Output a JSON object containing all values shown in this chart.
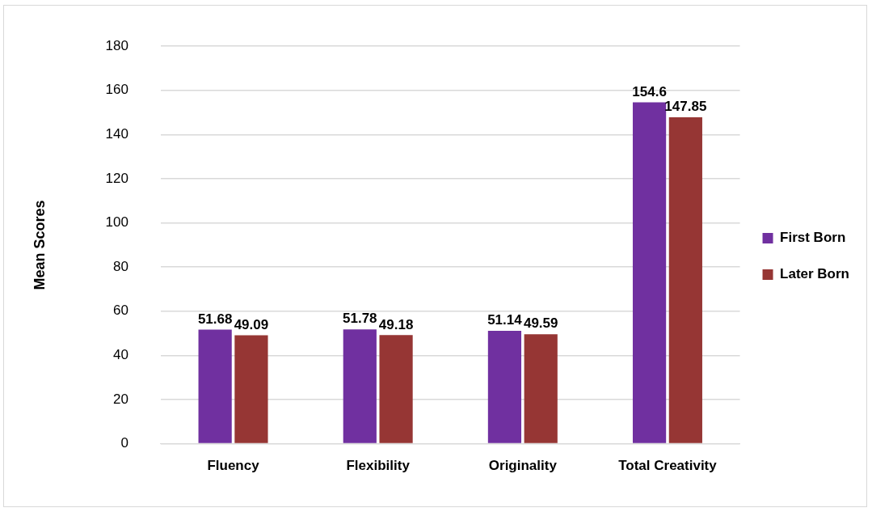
{
  "chart_data": {
    "type": "bar",
    "ylabel": "Mean Scores",
    "categories": [
      "Fluency",
      "Flexibility",
      "Originality",
      "Total Creativity"
    ],
    "series": [
      {
        "name": "First Born",
        "color": "#7030a0",
        "values": [
          51.68,
          51.78,
          51.14,
          154.6
        ]
      },
      {
        "name": "Later Born",
        "color": "#963634",
        "values": [
          49.09,
          49.18,
          49.59,
          147.85
        ]
      }
    ],
    "ylim": [
      0,
      180
    ],
    "yticks": [
      0,
      20,
      40,
      60,
      80,
      100,
      120,
      140,
      160,
      180
    ],
    "grid": "y",
    "legend": "right",
    "data_labels": true
  }
}
